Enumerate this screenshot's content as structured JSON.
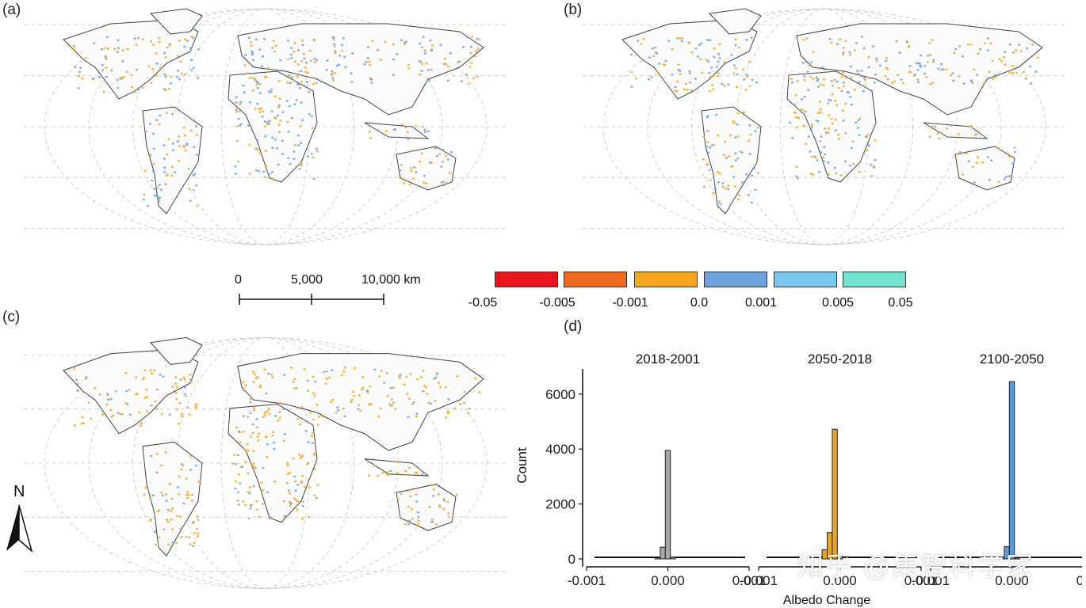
{
  "panels": {
    "a": {
      "label": "(a)"
    },
    "b": {
      "label": "(b)"
    },
    "c": {
      "label": "(c)"
    },
    "d": {
      "label": "(d)"
    }
  },
  "scalebar": {
    "ticks": [
      "0",
      "5,000",
      "10,000 km"
    ]
  },
  "legend": {
    "colors": [
      "#e8141c",
      "#ef6a1f",
      "#f5a623",
      "#6fa3e0",
      "#79c7ef",
      "#74e3cf"
    ],
    "ticks": [
      "-0.05",
      "-0.005",
      "-0.001",
      "0.0",
      "0.001",
      "0.005",
      "0.05"
    ]
  },
  "north_arrow": {
    "label": "N"
  },
  "map_colors": {
    "a": {
      "dominant": "#f5a623",
      "secondary": "#6fa3e0"
    },
    "b": {
      "dominant": "#f5a623",
      "secondary": "#6fa3e0"
    },
    "c": {
      "dominant": "#f5a623",
      "secondary": "#6fa3e0"
    }
  },
  "chart_data": {
    "type": "bar",
    "xlabel": "Albedo Change",
    "ylabel": "Count",
    "ylim": [
      0,
      6800
    ],
    "yticks": [
      0,
      2000,
      4000,
      6000
    ],
    "xticks": [
      "-0.001",
      "0.000",
      "0.001"
    ],
    "facets": [
      {
        "title": "2018-2001",
        "color": "#a6a6a6",
        "bins": [
          {
            "x": -0.0001,
            "count": 40
          },
          {
            "x": -5e-05,
            "count": 430
          },
          {
            "x": 0.0,
            "count": 3950
          },
          {
            "x": 5e-05,
            "count": 60
          }
        ]
      },
      {
        "title": "2050-2018",
        "color": "#e3a72f",
        "bins": [
          {
            "x": -0.00015,
            "count": 330
          },
          {
            "x": -0.0001,
            "count": 960
          },
          {
            "x": -5e-05,
            "count": 4720
          },
          {
            "x": 0.0,
            "count": 120
          }
        ]
      },
      {
        "title": "2100-2050",
        "color": "#5b9bd5",
        "bins": [
          {
            "x": -0.0001,
            "count": 70
          },
          {
            "x": -5e-05,
            "count": 450
          },
          {
            "x": 0.0,
            "count": 6450
          },
          {
            "x": 5e-05,
            "count": 40
          }
        ]
      }
    ]
  },
  "watermark": {
    "text": "知乎 @集智科学家"
  }
}
